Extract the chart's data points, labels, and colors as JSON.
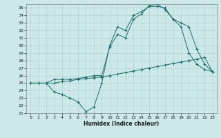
{
  "xlabel": "Humidex (Indice chaleur)",
  "xlim": [
    -0.5,
    23.5
  ],
  "ylim": [
    21,
    35.5
  ],
  "yticks": [
    21,
    22,
    23,
    24,
    25,
    26,
    27,
    28,
    29,
    30,
    31,
    32,
    33,
    34,
    35
  ],
  "xticks": [
    0,
    1,
    2,
    3,
    4,
    5,
    6,
    7,
    8,
    9,
    10,
    11,
    12,
    13,
    14,
    15,
    16,
    17,
    18,
    19,
    20,
    21,
    22,
    23
  ],
  "bg_color": "#cde8e8",
  "grid_color": "#b0d4d4",
  "line_color": "#1a6e6e",
  "line1_y": [
    25.0,
    25.0,
    25.0,
    25.0,
    25.2,
    25.3,
    25.5,
    25.6,
    25.7,
    25.8,
    26.0,
    26.2,
    26.4,
    26.6,
    26.8,
    27.0,
    27.2,
    27.4,
    27.6,
    27.8,
    28.0,
    28.2,
    28.4,
    26.5
  ],
  "line2_y": [
    25.0,
    25.0,
    25.0,
    23.8,
    23.5,
    23.0,
    22.5,
    21.2,
    21.8,
    25.0,
    30.0,
    32.5,
    32.0,
    34.0,
    34.5,
    35.2,
    35.2,
    35.0,
    33.5,
    32.5,
    29.0,
    27.5,
    26.8,
    26.5
  ],
  "line3_y": [
    25.0,
    25.0,
    25.0,
    25.5,
    25.5,
    25.5,
    25.6,
    25.8,
    26.0,
    26.0,
    29.8,
    31.5,
    31.0,
    33.5,
    34.2,
    35.3,
    35.5,
    34.8,
    33.5,
    33.0,
    32.5,
    29.5,
    27.5,
    26.5
  ]
}
